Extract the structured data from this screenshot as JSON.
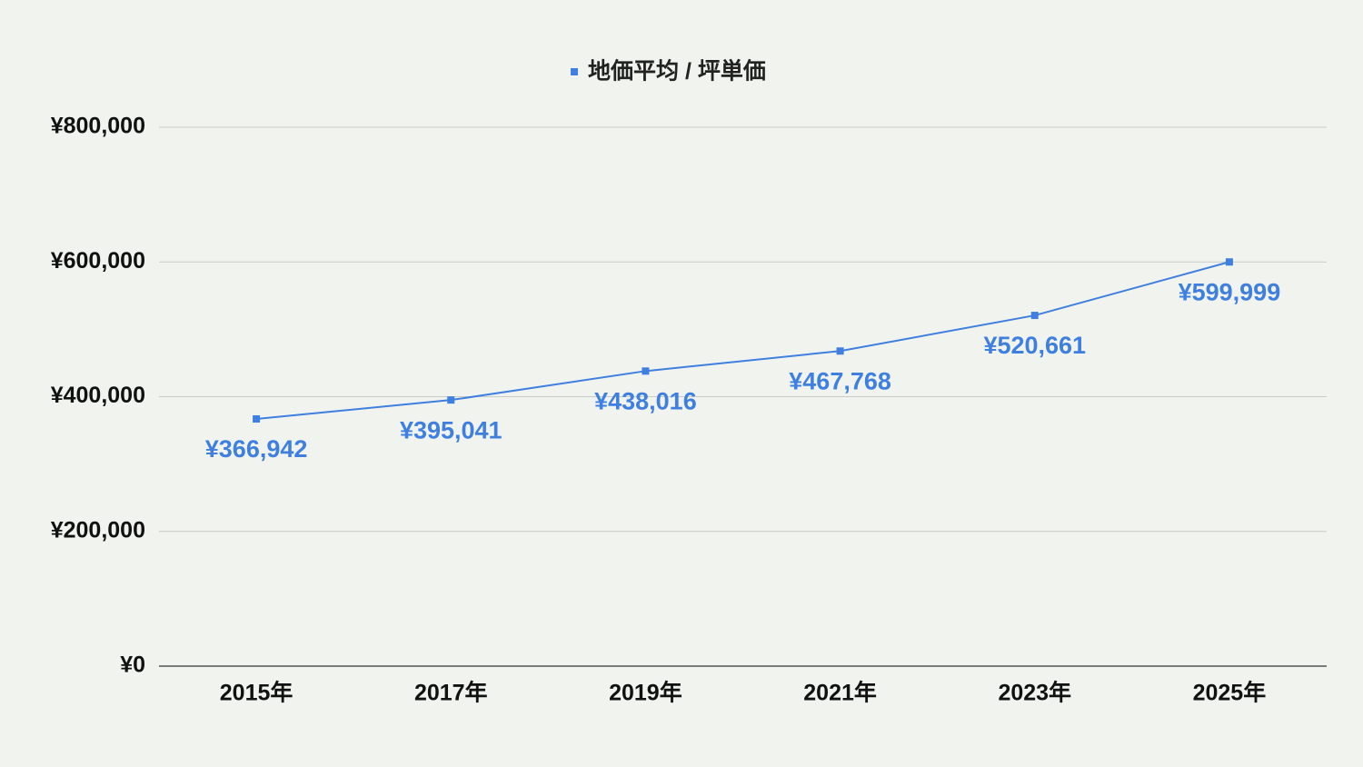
{
  "chart_data": {
    "type": "line",
    "categories": [
      "2015年",
      "2017年",
      "2019年",
      "2021年",
      "2023年",
      "2025年"
    ],
    "series": [
      {
        "name": "地価平均 / 坪単価",
        "color": "#3f7fe0",
        "values": [
          366942,
          395041,
          438016,
          467768,
          520661,
          599999
        ],
        "value_labels": [
          "¥366,942",
          "¥395,041",
          "¥438,016",
          "¥467,768",
          "¥520,661",
          "¥599,999"
        ]
      }
    ],
    "ylim": [
      0,
      800000
    ],
    "yticks": [
      {
        "value": 0,
        "label": "¥0"
      },
      {
        "value": 200000,
        "label": "¥200,000"
      },
      {
        "value": 400000,
        "label": "¥400,000"
      },
      {
        "value": 600000,
        "label": "¥600,000"
      },
      {
        "value": 800000,
        "label": "¥800,000"
      }
    ],
    "grid": true,
    "legend": "top"
  }
}
